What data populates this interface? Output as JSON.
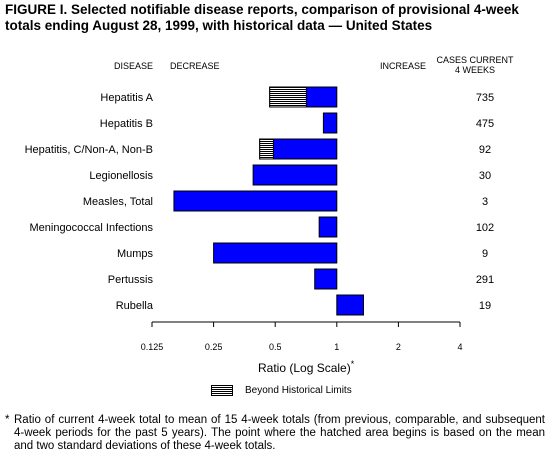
{
  "figure": {
    "title": "FIGURE I. Selected notifiable disease reports, comparison of provisional 4-week totals ending August 28, 1999, with historical data — United States",
    "footnote_mark": "*",
    "footnote": "Ratio of current 4-week total to mean of 15 4-week totals (from previous, comparable, and subsequent 4-week periods for the past 5 years). The point where the hatched area begins is based on the mean and two standard deviations of these 4-week totals."
  },
  "headers": {
    "disease": "DISEASE",
    "decrease": "DECREASE",
    "increase": "INCREASE",
    "cases_line1": "CASES CURRENT",
    "cases_line2": "4 WEEKS"
  },
  "legend": {
    "label": "Beyond Historical Limits"
  },
  "axis": {
    "label": "Ratio (Log Scale)",
    "label_mark": "*"
  },
  "colors": {
    "bar": "#0000ff",
    "hatch": "#000000",
    "outline": "#000000"
  },
  "chart_data": {
    "type": "bar",
    "orientation": "horizontal",
    "x_scale": "log2",
    "xlim": [
      0.125,
      4
    ],
    "baseline": 1,
    "x_ticks": [
      0.125,
      0.25,
      0.5,
      1,
      2,
      4
    ],
    "x_tick_labels": [
      "0.125",
      "0.25",
      "0.5",
      "1",
      "2",
      "4"
    ],
    "categories": [
      "Hepatitis A",
      "Hepatitis B",
      "Hepatitis, C/Non-A, Non-B",
      "Legionellosis",
      "Measles, Total",
      "Meningococcal Infections",
      "Mumps",
      "Pertussis",
      "Rubella"
    ],
    "ratios": [
      0.47,
      0.86,
      0.42,
      0.39,
      0.16,
      0.82,
      0.25,
      0.78,
      1.35
    ],
    "beyond_limits_start": [
      0.71,
      null,
      0.49,
      null,
      null,
      null,
      null,
      null,
      null
    ],
    "cases_current_4_weeks": [
      "735",
      "475",
      "92",
      "30",
      "3",
      "102",
      "9",
      "291",
      "19"
    ]
  }
}
